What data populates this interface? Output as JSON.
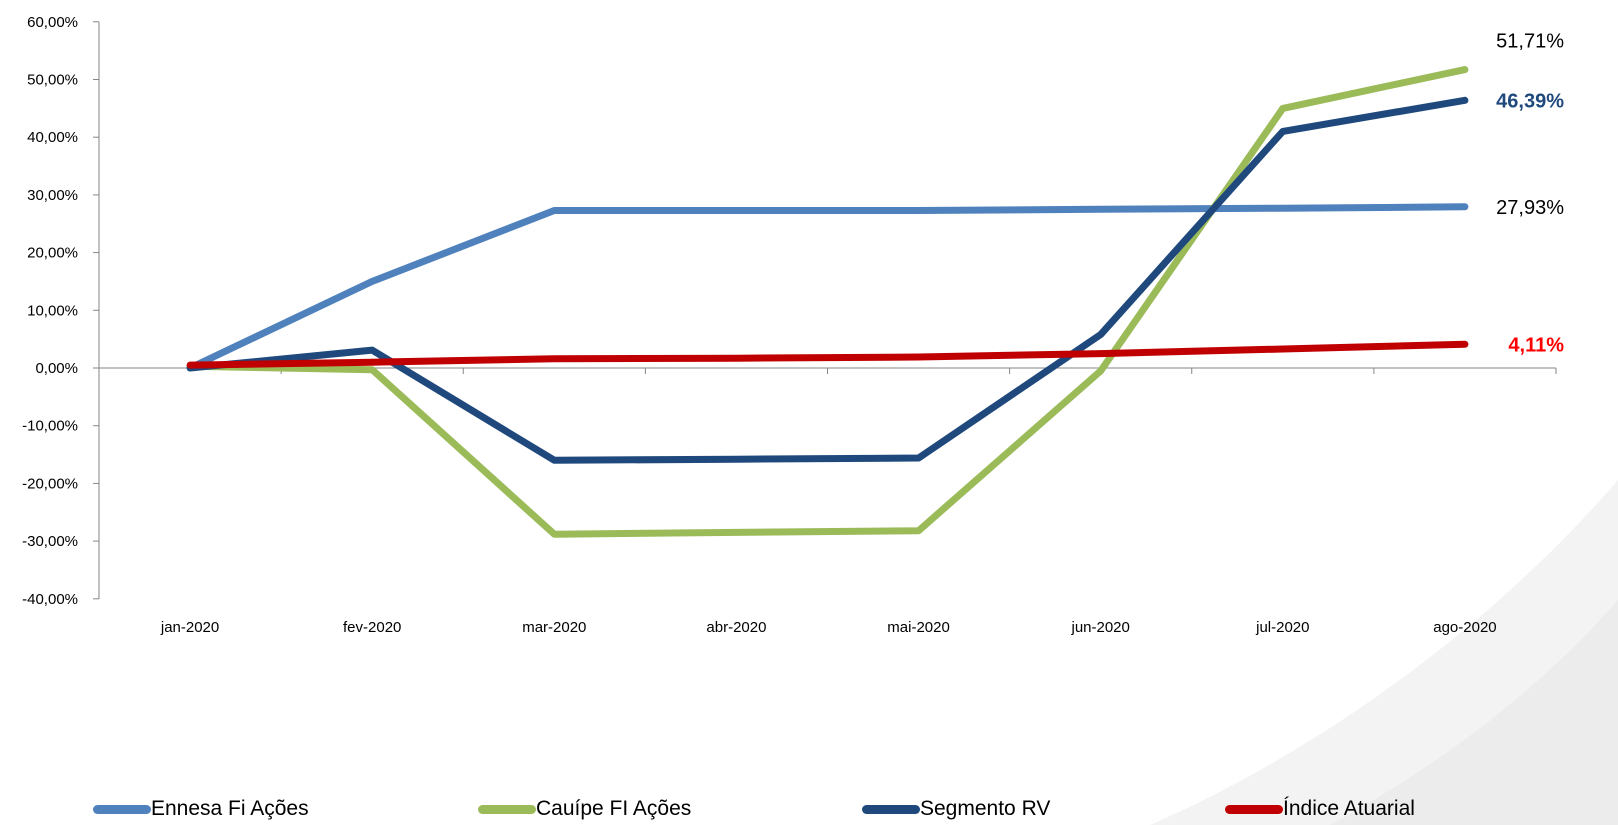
{
  "chart_data": {
    "type": "line",
    "title": "",
    "xlabel": "",
    "ylabel": "",
    "x": [
      "jan-2020",
      "fev-2020",
      "mar-2020",
      "abr-2020",
      "mai-2020",
      "jun-2020",
      "jul-2020",
      "ago-2020"
    ],
    "ylim": [
      -40,
      60
    ],
    "yticks": [
      60,
      50,
      40,
      30,
      20,
      10,
      0,
      -10,
      -20,
      -30,
      -40
    ],
    "ytick_labels": [
      "60,00%",
      "50,00%",
      "40,00%",
      "30,00%",
      "20,00%",
      "10,00%",
      "0,00%",
      "-10,00%",
      "-20,00%",
      "-30,00%",
      "-40,00%"
    ],
    "grid": false,
    "legend_position": "bottom",
    "series": [
      {
        "name": "Ennesa Fi Ações",
        "color": "#4F81BD",
        "values": [
          0.0,
          15.0,
          27.3,
          27.3,
          27.3,
          27.5,
          27.7,
          27.93
        ],
        "end_label": "27,93%",
        "end_label_color": "#000000",
        "end_label_bold": false
      },
      {
        "name": "Cauípe FI Ações",
        "color": "#9BBB59",
        "values": [
          0.3,
          -0.3,
          -28.8,
          -28.5,
          -28.2,
          -0.5,
          45.0,
          51.71
        ],
        "end_label": "51,71%",
        "end_label_color": "#000000",
        "end_label_bold": false
      },
      {
        "name": "Segmento RV",
        "color": "#1F497D",
        "values": [
          0.0,
          3.1,
          -16.0,
          -15.8,
          -15.6,
          5.8,
          41.0,
          46.39
        ],
        "end_label": "46,39%",
        "end_label_color": "#1F497D",
        "end_label_bold": true
      },
      {
        "name": "Índice Atuarial",
        "color": "#C00000",
        "values": [
          0.5,
          1.0,
          1.6,
          1.7,
          1.9,
          2.5,
          3.3,
          4.11
        ],
        "end_label": "4,11%",
        "end_label_color": "#FF0000",
        "end_label_bold": true
      }
    ]
  }
}
